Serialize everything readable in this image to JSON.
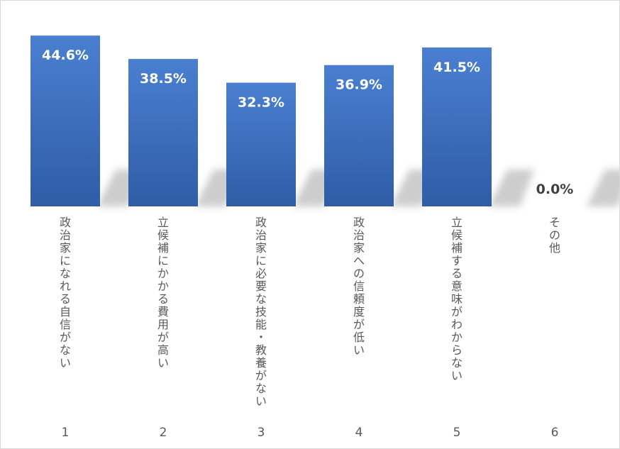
{
  "chart_data": {
    "type": "bar",
    "categories": [
      "政治家になれる自信がない",
      "立候補にかかる費用が高い",
      "政治家に必要な技能・教養がない",
      "政治家への信頼度が低い",
      "立候補する意味がわからない",
      "その他"
    ],
    "category_numbers": [
      "1",
      "2",
      "3",
      "4",
      "5",
      "6"
    ],
    "values": [
      44.6,
      38.5,
      32.3,
      36.9,
      41.5,
      0.0
    ],
    "value_labels": [
      "44.6%",
      "38.5%",
      "32.3%",
      "36.9%",
      "41.5%",
      "0.0%"
    ],
    "ylim": [
      0,
      50
    ],
    "grid": false,
    "legend": "none",
    "colors": {
      "bar_top": "#4a7fd1",
      "bar_bottom": "#2f5da6",
      "shadow": "#c8c8c8",
      "label_inside": "#ffffff",
      "label_outside": "#404040",
      "axis_text": "#595959"
    }
  }
}
